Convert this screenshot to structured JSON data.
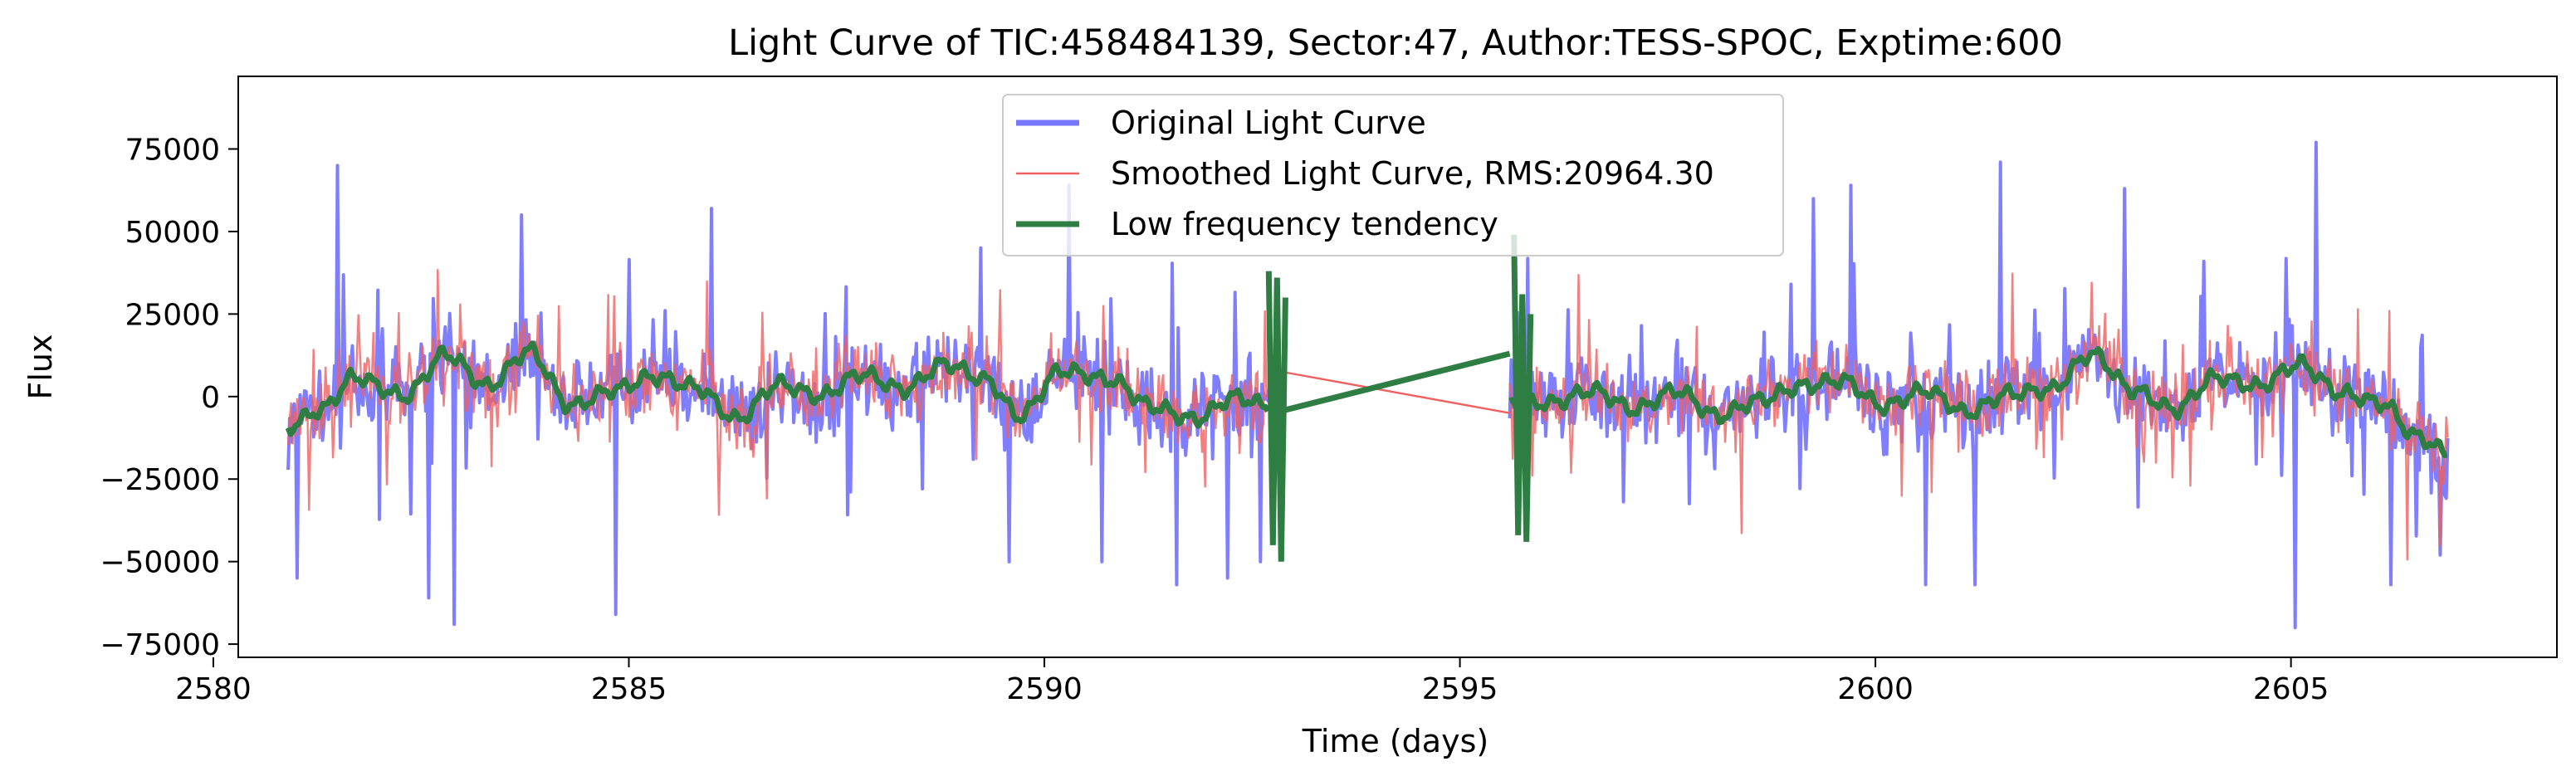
{
  "chart_data": {
    "type": "line",
    "title": "Light Curve of TIC:458484139, Sector:47, Author:TESS-SPOC, Exptime:600",
    "xlabel": "Time (days)",
    "ylabel": "Flux",
    "xlim": [
      2580.3,
      2608.2
    ],
    "ylim": [
      -79000,
      97000
    ],
    "x_ticks": [
      2580,
      2585,
      2590,
      2595,
      2600,
      2605
    ],
    "y_ticks": [
      -75000,
      -50000,
      -25000,
      0,
      25000,
      50000,
      75000
    ],
    "x_tick_labels": [
      "2580",
      "2585",
      "2590",
      "2595",
      "2600",
      "2605"
    ],
    "y_tick_labels": [
      "−75000",
      "−50000",
      "−25000",
      "0",
      "25000",
      "50000",
      "75000"
    ],
    "grid": false,
    "legend_position": "upper center",
    "segments": [
      {
        "start": 2580.9,
        "end": 2592.75
      },
      {
        "start": 2595.6,
        "end": 2606.9
      }
    ],
    "series": [
      {
        "name": "Original Light Curve",
        "color": "#7777ff",
        "noise_amplitude": 24000,
        "extremes": [
          [
            2581.0,
            -55000
          ],
          [
            2581.5,
            70000
          ],
          [
            2582.6,
            -61000
          ],
          [
            2582.9,
            -69000
          ],
          [
            2583.7,
            55000
          ],
          [
            2584.85,
            -66000
          ],
          [
            2586.0,
            57000
          ],
          [
            2590.3,
            64000
          ],
          [
            2590.7,
            -50000
          ],
          [
            2591.6,
            -57000
          ],
          [
            2592.2,
            -55000
          ],
          [
            2592.6,
            -50000
          ],
          [
            2599.25,
            60000
          ],
          [
            2599.7,
            64000
          ],
          [
            2600.6,
            -57000
          ],
          [
            2601.2,
            -57000
          ],
          [
            2601.5,
            71000
          ],
          [
            2603.0,
            63000
          ],
          [
            2605.05,
            -70000
          ],
          [
            2605.3,
            77000
          ],
          [
            2606.2,
            -57000
          ],
          [
            2606.8,
            -48000
          ]
        ]
      },
      {
        "name": "Smoothed Light Curve, RMS:20964.30",
        "color": "#f06060",
        "noise_amplitude": 20000,
        "bridge": [
          [
            2592.75,
            8000
          ],
          [
            2595.6,
            -5000
          ]
        ]
      },
      {
        "name": "Low frequency tendency",
        "color": "#2e7d42",
        "anchors": [
          [
            2580.9,
            -9000
          ],
          [
            2581.3,
            -4000
          ],
          [
            2581.7,
            6000
          ],
          [
            2582.3,
            0
          ],
          [
            2582.8,
            13000
          ],
          [
            2583.3,
            3000
          ],
          [
            2583.8,
            14000
          ],
          [
            2584.3,
            -3000
          ],
          [
            2584.8,
            2000
          ],
          [
            2585.3,
            6000
          ],
          [
            2585.8,
            3000
          ],
          [
            2586.3,
            -7000
          ],
          [
            2586.8,
            4000
          ],
          [
            2587.3,
            0
          ],
          [
            2587.8,
            7000
          ],
          [
            2588.3,
            2000
          ],
          [
            2588.8,
            10000
          ],
          [
            2589.3,
            5000
          ],
          [
            2589.7,
            -6000
          ],
          [
            2590.2,
            8000
          ],
          [
            2590.8,
            5000
          ],
          [
            2591.3,
            -3000
          ],
          [
            2591.8,
            -7000
          ],
          [
            2592.3,
            0
          ],
          [
            2592.7,
            -3000
          ]
        ],
        "anchors_b": [
          [
            2595.6,
            -2000
          ],
          [
            2596.1,
            -2000
          ],
          [
            2596.6,
            2000
          ],
          [
            2597.1,
            -4000
          ],
          [
            2597.6,
            2000
          ],
          [
            2598.1,
            -6000
          ],
          [
            2598.6,
            -1000
          ],
          [
            2599.1,
            3000
          ],
          [
            2599.6,
            5000
          ],
          [
            2600.1,
            -3000
          ],
          [
            2600.6,
            2000
          ],
          [
            2601.1,
            -5000
          ],
          [
            2601.6,
            1000
          ],
          [
            2602.1,
            2000
          ],
          [
            2602.6,
            13000
          ],
          [
            2603.1,
            2000
          ],
          [
            2603.6,
            -4000
          ],
          [
            2604.1,
            6000
          ],
          [
            2604.6,
            3000
          ],
          [
            2605.1,
            10000
          ],
          [
            2605.6,
            1000
          ],
          [
            2606.1,
            -2000
          ],
          [
            2606.5,
            -12000
          ],
          [
            2606.9,
            -17000
          ]
        ],
        "bridge": [
          [
            2592.75,
            -5000
          ],
          [
            2595.6,
            13000
          ]
        ],
        "edge_spikes": [
          [
            2592.7,
            38000
          ],
          [
            2592.75,
            -45000
          ],
          [
            2592.8,
            36000
          ],
          [
            2592.85,
            -50000
          ],
          [
            2592.9,
            30000
          ],
          [
            2595.65,
            49000
          ],
          [
            2595.7,
            -42000
          ],
          [
            2595.75,
            31000
          ],
          [
            2595.8,
            -44000
          ],
          [
            2595.85,
            25000
          ]
        ]
      }
    ],
    "legend": [
      {
        "label": "Original Light Curve",
        "color": "#7777ff",
        "style": "thick"
      },
      {
        "label": "Smoothed Light Curve, RMS:20964.30",
        "color": "#f06060",
        "style": "thin"
      },
      {
        "label": "Low frequency tendency",
        "color": "#2e7d42",
        "style": "thick"
      }
    ]
  }
}
